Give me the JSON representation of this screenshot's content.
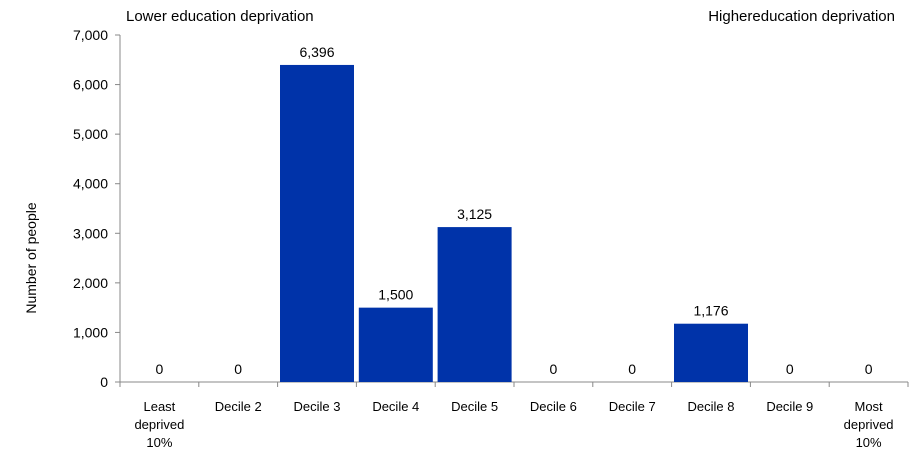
{
  "annotations": {
    "left": "Lower education deprivation",
    "right": "Highereducation deprivation"
  },
  "chart_data": {
    "type": "bar",
    "title": "",
    "xlabel": "",
    "ylabel": "Number of people",
    "categories": [
      [
        "Least",
        "deprived",
        "10%"
      ],
      [
        "Decile 2"
      ],
      [
        "Decile 3"
      ],
      [
        "Decile 4"
      ],
      [
        "Decile 5"
      ],
      [
        "Decile 6"
      ],
      [
        "Decile 7"
      ],
      [
        "Decile 8"
      ],
      [
        "Decile 9"
      ],
      [
        "Most",
        "deprived",
        "10%"
      ]
    ],
    "values": [
      0,
      0,
      6396,
      1500,
      3125,
      0,
      0,
      1176,
      0,
      0
    ],
    "data_labels": [
      "0",
      "0",
      "6,396",
      "1,500",
      "3,125",
      "0",
      "0",
      "1,176",
      "0",
      "0"
    ],
    "yticks": [
      "0",
      "1,000",
      "2,000",
      "3,000",
      "4,000",
      "5,000",
      "6,000",
      "7,000"
    ],
    "ylim": [
      0,
      7000
    ],
    "grid": false,
    "legend": "none",
    "bar_color": "#0033A9"
  }
}
